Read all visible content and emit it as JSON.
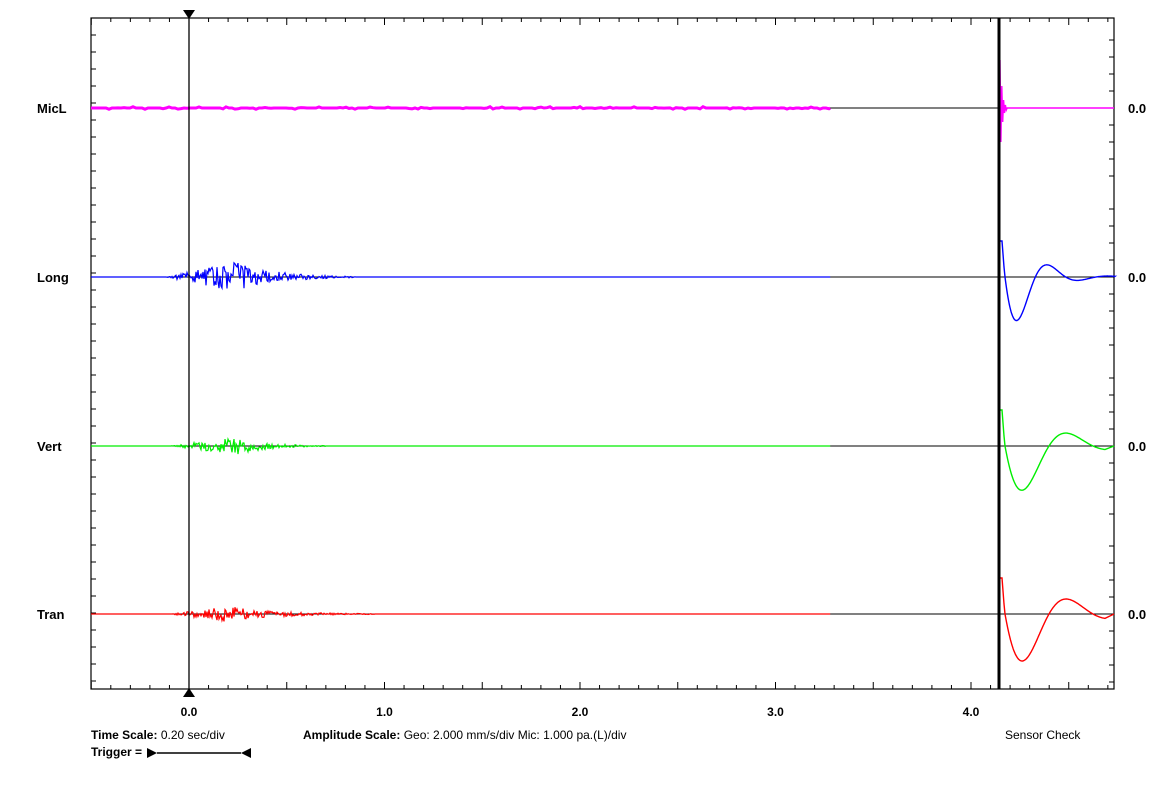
{
  "chart_data": {
    "type": "line",
    "title": "",
    "xlabel": "",
    "ylabel": "",
    "x_ticks": [
      "0.0",
      "1.0",
      "2.0",
      "3.0",
      "4.0"
    ],
    "xlim": [
      -0.5,
      4.7
    ],
    "record_end_sec": 3.28,
    "sensor_check_start_sec": 4.15,
    "series": [
      {
        "name": "MicL",
        "color": "#ff00ff",
        "right_value": "0.0"
      },
      {
        "name": "Long",
        "color": "#0000ff",
        "right_value": "0.0"
      },
      {
        "name": "Vert",
        "color": "#00ee00",
        "right_value": "0.0"
      },
      {
        "name": "Tran",
        "color": "#ff0000",
        "right_value": "0.0"
      }
    ],
    "grid": false
  },
  "footer": {
    "time_scale_label": "Time Scale:",
    "time_scale_value": "0.20 sec/div",
    "amplitude_label": "Amplitude Scale:",
    "amplitude_value": "Geo: 2.000 mm/s/div Mic: 1.000 pa.(L)/div",
    "trigger_label": "Trigger =",
    "sensor_check": "Sensor Check"
  }
}
